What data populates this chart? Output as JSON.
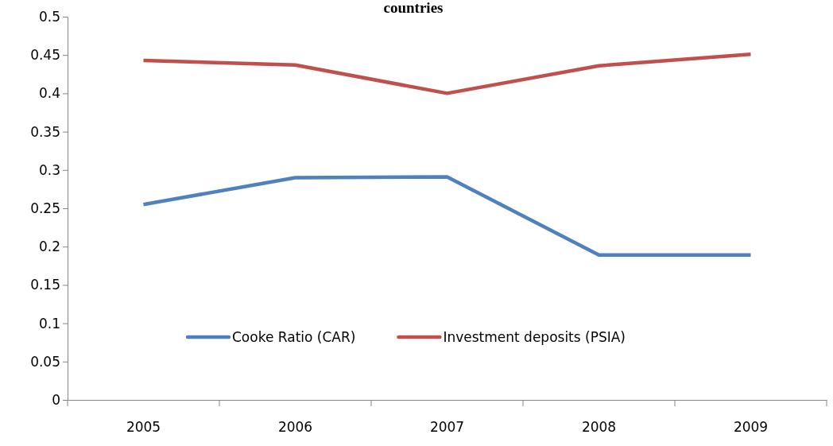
{
  "chart_data": {
    "type": "line",
    "title": "countries",
    "categories": [
      "2005",
      "2006",
      "2007",
      "2008",
      "2009"
    ],
    "series": [
      {
        "name": "Cooke Ratio (CAR)",
        "color": "#4f81bd",
        "values": [
          0.255,
          0.29,
          0.291,
          0.189,
          0.189
        ]
      },
      {
        "name": "Investment deposits (PSIA)",
        "color": "#c0504d",
        "values": [
          0.443,
          0.437,
          0.4,
          0.436,
          0.451
        ]
      }
    ],
    "ylim": [
      0,
      0.5
    ],
    "yticks": [
      0,
      {
        "value": 0.05,
        "label": "0.05"
      },
      {
        "value": 0.1,
        "label": "0.1"
      },
      {
        "value": 0.15,
        "label": "0.15"
      },
      {
        "value": 0.2,
        "label": "0.2"
      },
      {
        "value": 0.25,
        "label": "0.25"
      },
      {
        "value": 0.3,
        "label": "0.3"
      },
      {
        "value": 0.35,
        "label": "0.35"
      },
      {
        "value": 0.4,
        "label": "0.4"
      },
      {
        "value": 0.45,
        "label": "0.45"
      },
      {
        "value": 0.5,
        "label": "0.5"
      }
    ],
    "legend": "bottom",
    "marker": "none",
    "line_style": "solid"
  }
}
